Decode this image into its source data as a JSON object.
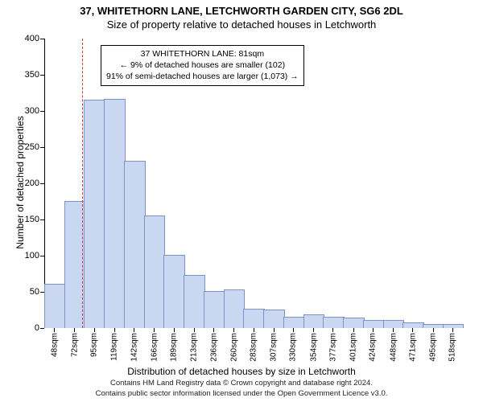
{
  "title_line1": "37, WHITETHORN LANE, LETCHWORTH GARDEN CITY, SG6 2DL",
  "title_line2": "Size of property relative to detached houses in Letchworth",
  "ylabel": "Number of detached properties",
  "xlabel": "Distribution of detached houses by size in Letchworth",
  "footer_line1": "Contains HM Land Registry data © Crown copyright and database right 2024.",
  "footer_line2": "Contains public sector information licensed under the Open Government Licence v3.0.",
  "chart": {
    "type": "histogram",
    "y_min": 0,
    "y_max": 400,
    "y_tick_step": 50,
    "x_min": 36,
    "x_max": 530,
    "x_ticks": [
      48,
      72,
      95,
      119,
      142,
      166,
      189,
      213,
      236,
      260,
      283,
      307,
      330,
      354,
      377,
      401,
      424,
      448,
      471,
      495,
      518
    ],
    "x_tick_labels": [
      "48sqm",
      "72sqm",
      "95sqm",
      "119sqm",
      "142sqm",
      "166sqm",
      "189sqm",
      "213sqm",
      "236sqm",
      "260sqm",
      "283sqm",
      "307sqm",
      "330sqm",
      "354sqm",
      "377sqm",
      "401sqm",
      "424sqm",
      "448sqm",
      "471sqm",
      "495sqm",
      "518sqm"
    ],
    "bar_color": "#c9d8f0",
    "bar_border": "#7a94c6",
    "bin_width": 23.5,
    "bins_start": 36,
    "values": [
      60,
      175,
      315,
      316,
      230,
      155,
      100,
      72,
      50,
      52,
      26,
      25,
      15,
      18,
      15,
      13,
      10,
      10,
      7,
      5,
      5
    ],
    "marker_value": 81,
    "marker_color": "#cc3a33",
    "background_color": "#ffffff"
  },
  "annotation": {
    "line1": "37 WHITETHORN LANE: 81sqm",
    "line2": "← 9% of detached houses are smaller (102)",
    "line3": "91% of semi-detached houses are larger (1,073) →"
  }
}
